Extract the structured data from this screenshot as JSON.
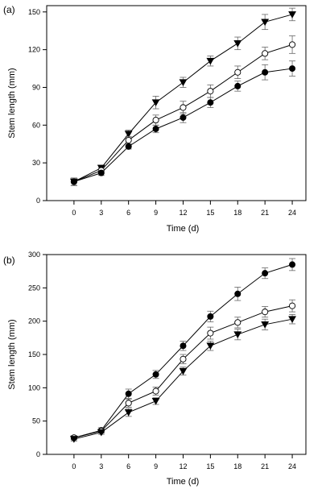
{
  "chart_data": [
    {
      "type": "line",
      "panel_label": "(a)",
      "xlabel": "Time (d)",
      "ylabel": "Stem length (mm)",
      "x": [
        0,
        3,
        6,
        9,
        12,
        15,
        18,
        21,
        24
      ],
      "xlim": [
        -3,
        25.5
      ],
      "ylim": [
        0,
        155
      ],
      "xticks": [
        0,
        3,
        6,
        9,
        12,
        15,
        18,
        21,
        24
      ],
      "yticks": [
        0,
        30,
        60,
        90,
        120,
        150
      ],
      "grid": false,
      "series": [
        {
          "marker": "triangle-down-filled",
          "values": [
            15,
            26,
            53,
            78,
            94,
            111,
            125,
            142,
            148
          ],
          "errors": [
            3,
            2,
            3,
            5,
            4,
            4,
            5,
            6,
            5
          ]
        },
        {
          "marker": "circle-open",
          "values": [
            15,
            24,
            48,
            64,
            74,
            87,
            102,
            117,
            124
          ],
          "errors": [
            3,
            2,
            3,
            4,
            5,
            5,
            5,
            5,
            7
          ]
        },
        {
          "marker": "circle-filled",
          "values": [
            15,
            22,
            43,
            57,
            66,
            78,
            91,
            102,
            105
          ],
          "errors": [
            3,
            2,
            2,
            3,
            4,
            4,
            4,
            6,
            6
          ]
        }
      ]
    },
    {
      "type": "line",
      "panel_label": "(b)",
      "xlabel": "Time (d)",
      "ylabel": "Stem length (mm)",
      "x": [
        0,
        3,
        6,
        9,
        12,
        15,
        18,
        21,
        24
      ],
      "xlim": [
        -3,
        25.5
      ],
      "ylim": [
        0,
        300
      ],
      "xticks": [
        0,
        3,
        6,
        9,
        12,
        15,
        18,
        21,
        24
      ],
      "yticks": [
        0,
        50,
        100,
        150,
        200,
        250,
        300
      ],
      "grid": false,
      "series": [
        {
          "marker": "circle-filled",
          "values": [
            25,
            36,
            91,
            120,
            163,
            207,
            241,
            272,
            285
          ],
          "errors": [
            3,
            4,
            7,
            6,
            7,
            8,
            10,
            8,
            9
          ]
        },
        {
          "marker": "circle-open",
          "values": [
            25,
            35,
            77,
            95,
            143,
            182,
            198,
            214,
            223
          ],
          "errors": [
            3,
            3,
            6,
            6,
            7,
            9,
            8,
            8,
            9
          ]
        },
        {
          "marker": "triangle-down-filled",
          "values": [
            23,
            33,
            63,
            80,
            125,
            163,
            180,
            195,
            203
          ],
          "errors": [
            3,
            3,
            6,
            5,
            6,
            7,
            8,
            8,
            7
          ]
        }
      ]
    }
  ]
}
